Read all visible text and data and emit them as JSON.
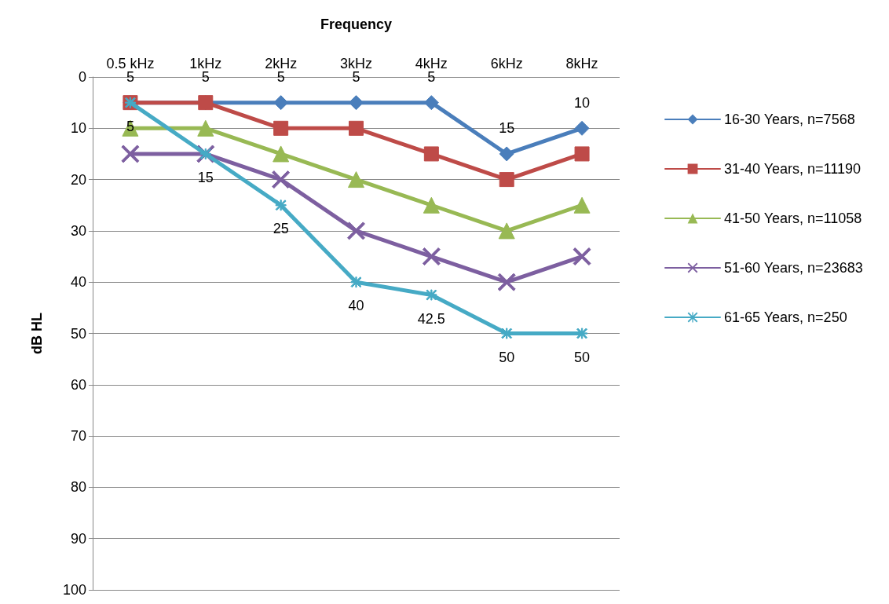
{
  "chart_data": {
    "type": "line",
    "xlabel": "Frequency",
    "ylabel": "dB HL",
    "categories": [
      "0.5 kHz",
      "1kHz",
      "2kHz",
      "3kHz",
      "4kHz",
      "6kHz",
      "8kHz"
    ],
    "ylim": [
      100,
      0
    ],
    "yticks": [
      0,
      10,
      20,
      30,
      40,
      50,
      60,
      70,
      80,
      90,
      100
    ],
    "grid": "y",
    "legend": "right",
    "series": [
      {
        "name": "16-30 Years, n=7568",
        "color": "#4a7ebb",
        "marker": "diamond",
        "values": [
          5,
          5,
          5,
          5,
          5,
          15,
          10
        ],
        "value_labels": [
          "5",
          "5",
          "5",
          "5",
          "5",
          "15",
          "10"
        ]
      },
      {
        "name": "31-40 Years, n=11190",
        "color": "#be4b48",
        "marker": "square",
        "values": [
          5,
          5,
          10,
          10,
          15,
          20,
          15
        ]
      },
      {
        "name": "41-50 Years, n=11058",
        "color": "#98b954",
        "marker": "triangle",
        "values": [
          10,
          10,
          15,
          20,
          25,
          30,
          25
        ]
      },
      {
        "name": "51-60 Years, n=23683",
        "color": "#7d5fa0",
        "marker": "cross",
        "values": [
          15,
          15,
          20,
          30,
          35,
          40,
          35
        ]
      },
      {
        "name": "61-65 Years, n=250",
        "color": "#46aac5",
        "marker": "star",
        "values": [
          5,
          15,
          25,
          40,
          42.5,
          50,
          50
        ],
        "value_labels": [
          "5",
          "15",
          "25",
          "40",
          "42.5",
          "50",
          "50"
        ]
      }
    ]
  }
}
